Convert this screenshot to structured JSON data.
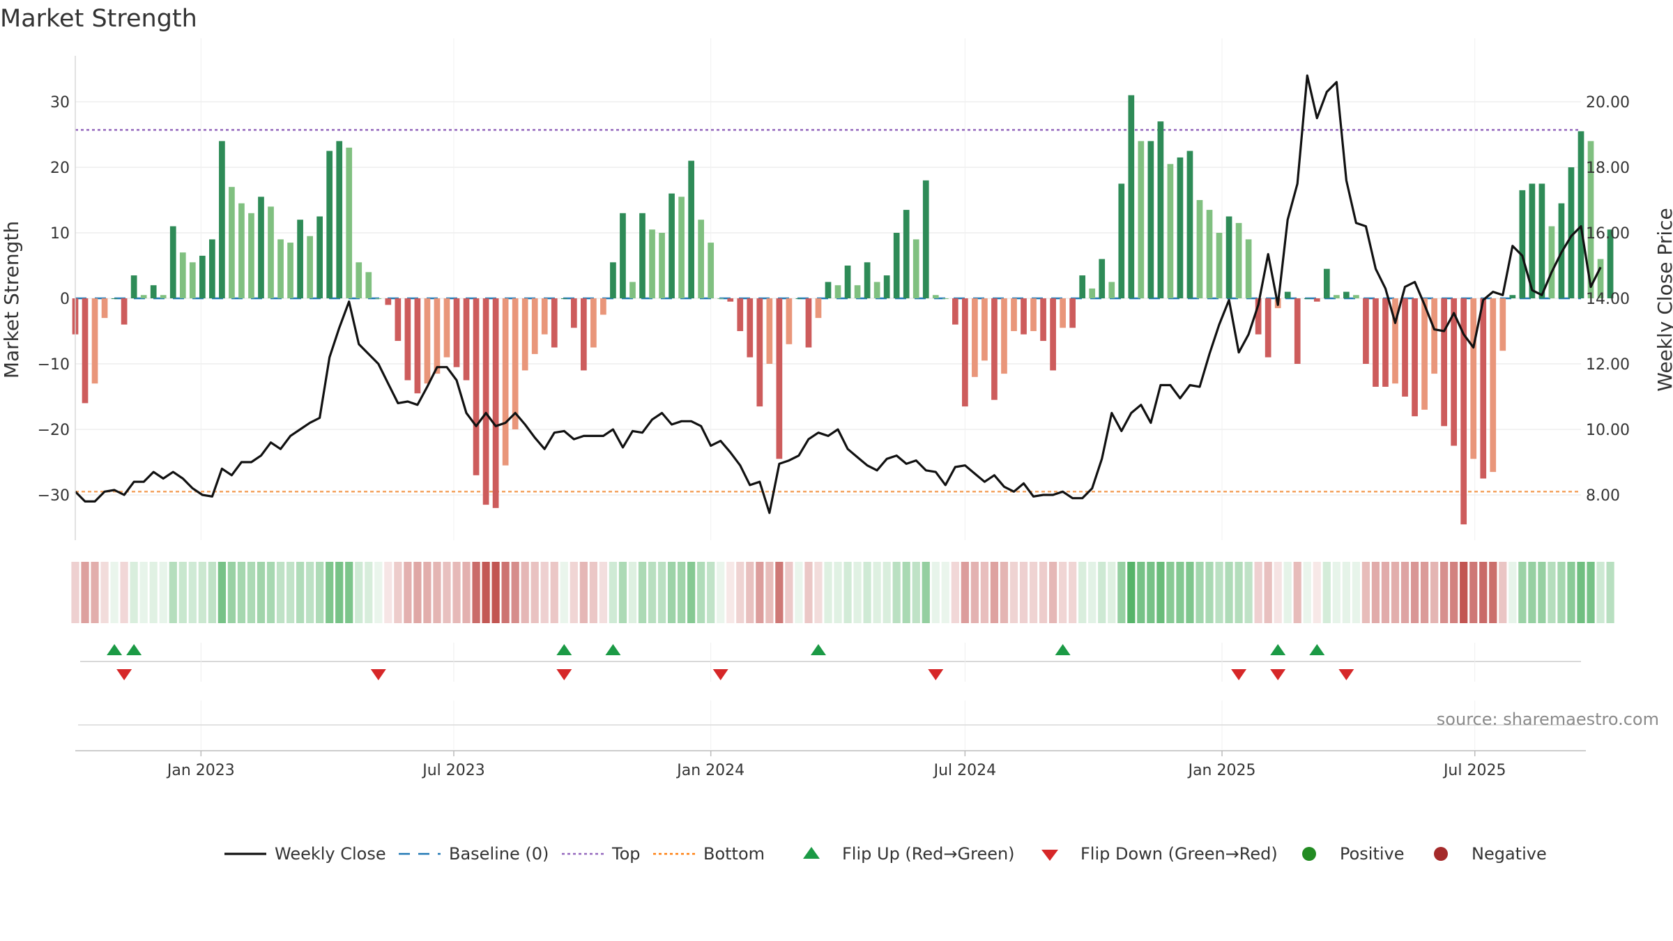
{
  "chart_data": {
    "type": "bar",
    "title": "Market Strength",
    "ylabel": "Market Strength",
    "y2label": "Weekly Close Price",
    "ylim": [
      -37,
      37
    ],
    "y2lim": [
      6.0,
      21.0
    ],
    "yticks": [
      30,
      20,
      10,
      0,
      -10,
      -20,
      -30
    ],
    "ytick_labels": [
      "30",
      "20",
      "10",
      "0",
      "−10",
      "−20",
      "−30"
    ],
    "y2ticks": [
      20,
      18,
      16,
      14,
      12,
      10,
      8
    ],
    "y2tick_labels": [
      "20.00",
      "18.00",
      "16.00",
      "14.00",
      "12.00",
      "10.00",
      "8.00"
    ],
    "xlim": [
      "2022-10-03",
      "2025-09-15"
    ],
    "xticks": [
      "2023-01-01",
      "2023-07-01",
      "2024-01-01",
      "2024-07-01",
      "2025-01-01",
      "2025-07-01"
    ],
    "xtick_labels": [
      "Jan 2023",
      "Jul 2023",
      "Jan 2024",
      "Jul 2024",
      "Jan 2025",
      "Jul 2025"
    ],
    "top_line": 25.7,
    "bottom_line": -29.5,
    "baseline": 0,
    "grid": true,
    "legend_placement": "bottom-center",
    "source_text": "source: sharemaestro.com",
    "start_date": "2022-10-03",
    "strength": [
      -5.5,
      -16,
      -13,
      -3,
      0,
      -4,
      3.5,
      0.5,
      2,
      0.5,
      11,
      7,
      5.5,
      6.5,
      9,
      24,
      17,
      14.5,
      13,
      15.5,
      14,
      9,
      8.5,
      12,
      9.5,
      12.5,
      22.5,
      24,
      23,
      5.5,
      4,
      0,
      -1,
      -6.5,
      -12.5,
      -14.5,
      -13,
      -11.5,
      -9,
      -10.5,
      -12.5,
      -27,
      -31.5,
      -32,
      -25.5,
      -20,
      -11,
      -8.5,
      -5.5,
      -7.5,
      0,
      -4.5,
      -11,
      -7.5,
      -2.5,
      5.5,
      13,
      2.5,
      13,
      10.5,
      10,
      16,
      15.5,
      21,
      12,
      8.5,
      0,
      -0.5,
      -5,
      -9,
      -16.5,
      -10,
      -24.5,
      -7,
      0,
      -7.5,
      -3,
      2.5,
      2,
      5,
      2,
      5.5,
      2.5,
      3.5,
      10,
      13.5,
      9,
      18,
      0.5,
      0,
      -4,
      -16.5,
      -12,
      -9.5,
      -15.5,
      -11.5,
      -5,
      -5.5,
      -5,
      -6.5,
      -11,
      -4.5,
      -4.5,
      3.5,
      1.5,
      6,
      2.5,
      17.5,
      31,
      24,
      24,
      27,
      20.5,
      21.5,
      22.5,
      15,
      13.5,
      10,
      12.5,
      11.5,
      9,
      -5.5,
      -9,
      -1.5,
      1,
      -10,
      0,
      -0.5,
      4.5,
      0.5,
      1,
      0.5,
      -10,
      -13.5,
      -13.5,
      -13,
      -15,
      -18,
      -17,
      -11.5,
      -19.5,
      -22.5,
      -34.5,
      -24.5,
      -27.5,
      -26.5,
      -8,
      0.5,
      16.5,
      17.5,
      17.5,
      11,
      14.5,
      20,
      25.5,
      24,
      6,
      10.5
    ],
    "close": [
      8.1,
      7.8,
      7.8,
      8.1,
      8.15,
      8.0,
      8.4,
      8.4,
      8.7,
      8.5,
      8.7,
      8.5,
      8.2,
      8.0,
      7.95,
      8.8,
      8.6,
      9.0,
      9.0,
      9.2,
      9.6,
      9.4,
      9.8,
      10.0,
      10.2,
      10.35,
      12.2,
      13.1,
      13.9,
      12.6,
      12.3,
      12.0,
      11.4,
      10.8,
      10.85,
      10.75,
      11.3,
      11.9,
      11.9,
      11.5,
      10.5,
      10.1,
      10.5,
      10.1,
      10.2,
      10.5,
      10.15,
      9.75,
      9.4,
      9.9,
      9.95,
      9.7,
      9.8,
      9.8,
      9.8,
      10.0,
      9.45,
      9.95,
      9.9,
      10.3,
      10.5,
      10.15,
      10.25,
      10.25,
      10.1,
      9.5,
      9.65,
      9.3,
      8.9,
      8.3,
      8.4,
      7.45,
      8.95,
      9.05,
      9.2,
      9.7,
      9.9,
      9.8,
      10.0,
      9.4,
      9.15,
      8.9,
      8.75,
      9.1,
      9.2,
      8.95,
      9.05,
      8.75,
      8.7,
      8.3,
      8.85,
      8.9,
      8.65,
      8.4,
      8.6,
      8.25,
      8.1,
      8.35,
      7.95,
      8.0,
      8.0,
      8.1,
      7.9,
      7.9,
      8.2,
      9.1,
      10.5,
      9.95,
      10.5,
      10.75,
      10.2,
      11.35,
      11.35,
      10.95,
      11.35,
      11.3,
      12.3,
      13.2,
      13.95,
      12.35,
      12.9,
      13.8,
      15.35,
      13.8,
      16.4,
      17.5,
      20.8,
      19.5,
      20.3,
      20.6,
      17.6,
      16.3,
      16.2,
      14.9,
      14.3,
      13.25,
      14.35,
      14.5,
      13.8,
      13.05,
      13.0,
      13.55,
      12.9,
      12.5,
      13.95,
      14.2,
      14.1,
      15.6,
      15.3,
      14.25,
      14.1,
      14.8,
      15.4,
      15.9,
      16.2,
      14.35,
      14.95
    ],
    "flip_up_weeks": [
      4,
      6,
      50,
      55,
      76,
      101,
      123,
      127
    ],
    "flip_down_weeks": [
      5,
      31,
      50,
      66,
      88,
      119,
      123,
      130
    ],
    "legend": [
      {
        "label": "Weekly Close",
        "style": "line",
        "color": "#111111"
      },
      {
        "label": "Baseline (0)",
        "style": "dash",
        "color": "#1f77b4"
      },
      {
        "label": "Top",
        "style": "dot",
        "color": "#9467bd"
      },
      {
        "label": "Bottom",
        "style": "dot",
        "color": "#ff7f0e"
      },
      {
        "label": "Flip Up (Red→Green)",
        "style": "triangle-up",
        "color": "#1b9a45"
      },
      {
        "label": "Flip Down (Green→Red)",
        "style": "triangle-down",
        "color": "#d62728"
      },
      {
        "label": "Positive",
        "style": "dot-marker",
        "color": "#228b22"
      },
      {
        "label": "Negative",
        "style": "dot-marker",
        "color": "#a52a2a"
      }
    ],
    "colors": {
      "pos_strong": "#2e8b57",
      "pos_light": "#80c080",
      "neg_strong": "#cd5c5c",
      "neg_light": "#e9967a",
      "close_line": "#111111",
      "top_line": "#9467bd",
      "bottom_line": "#f4a460",
      "baseline": "#1f77b4"
    }
  }
}
